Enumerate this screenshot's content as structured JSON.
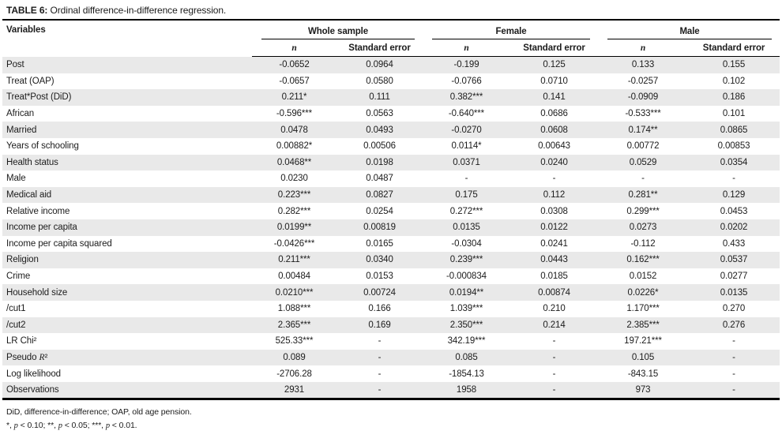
{
  "title": {
    "label": "TABLE 6:",
    "text": " Ordinal difference-in-difference regression."
  },
  "table": {
    "variables_header": "Variables",
    "groups": [
      {
        "label": "Whole sample"
      },
      {
        "label": "Female"
      },
      {
        "label": "Male"
      }
    ],
    "col_headers": {
      "coef": "n",
      "se": "Standard error"
    },
    "rows": [
      {
        "variable": "Post",
        "cells": [
          "-0.0652",
          "0.0964",
          "-0.199",
          "0.125",
          "0.133",
          "0.155"
        ]
      },
      {
        "variable": "Treat (OAP)",
        "cells": [
          "-0.0657",
          "0.0580",
          "-0.0766",
          "0.0710",
          "-0.0257",
          "0.102"
        ]
      },
      {
        "variable": "Treat*Post (DiD)",
        "cells": [
          "0.211*",
          "0.111",
          "0.382***",
          "0.141",
          "-0.0909",
          "0.186"
        ]
      },
      {
        "variable": "African",
        "cells": [
          "-0.596***",
          "0.0563",
          "-0.640***",
          "0.0686",
          "-0.533***",
          "0.101"
        ]
      },
      {
        "variable": "Married",
        "cells": [
          "0.0478",
          "0.0493",
          "-0.0270",
          "0.0608",
          "0.174**",
          "0.0865"
        ]
      },
      {
        "variable": "Years of schooling",
        "cells": [
          "0.00882*",
          "0.00506",
          "0.0114*",
          "0.00643",
          "0.00772",
          "0.00853"
        ]
      },
      {
        "variable": "Health status",
        "cells": [
          "0.0468**",
          "0.0198",
          "0.0371",
          "0.0240",
          "0.0529",
          "0.0354"
        ]
      },
      {
        "variable": "Male",
        "cells": [
          "0.0230",
          "0.0487",
          "-",
          "-",
          "-",
          "-"
        ]
      },
      {
        "variable": "Medical aid",
        "cells": [
          "0.223***",
          "0.0827",
          "0.175",
          "0.112",
          "0.281**",
          "0.129"
        ]
      },
      {
        "variable": "Relative income",
        "cells": [
          "0.282***",
          "0.0254",
          "0.272***",
          "0.0308",
          "0.299***",
          "0.0453"
        ]
      },
      {
        "variable": "Income per capita",
        "cells": [
          "0.0199**",
          "0.00819",
          "0.0135",
          "0.0122",
          "0.0273",
          "0.0202"
        ]
      },
      {
        "variable": "Income per capita squared",
        "cells": [
          "-0.0426***",
          "0.0165",
          "-0.0304",
          "0.0241",
          "-0.112",
          "0.433"
        ]
      },
      {
        "variable": "Religion",
        "cells": [
          "0.211***",
          "0.0340",
          "0.239***",
          "0.0443",
          "0.162***",
          "0.0537"
        ]
      },
      {
        "variable": "Crime",
        "cells": [
          "0.00484",
          "0.0153",
          "-0.000834",
          "0.0185",
          "0.0152",
          "0.0277"
        ]
      },
      {
        "variable": "Household size",
        "cells": [
          "0.0210***",
          "0.00724",
          "0.0194**",
          "0.00874",
          "0.0226*",
          "0.0135"
        ]
      },
      {
        "variable": "/cut1",
        "cells": [
          "1.088***",
          "0.166",
          "1.039***",
          "0.210",
          "1.170***",
          "0.270"
        ]
      },
      {
        "variable": "/cut2",
        "cells": [
          "2.365***",
          "0.169",
          "2.350***",
          "0.214",
          "2.385***",
          "0.276"
        ]
      },
      {
        "variable": "LR Chi²",
        "cells": [
          "525.33***",
          "-",
          "342.19***",
          "-",
          "197.21***",
          "-"
        ]
      },
      {
        "variable": "Pseudo R²",
        "cells": [
          "0.089",
          "-",
          "0.085",
          "-",
          "0.105",
          "-"
        ]
      },
      {
        "variable": "Log likelihood",
        "cells": [
          "-2706.28",
          "-",
          "-1854.13",
          "-",
          "-843.15",
          "-"
        ]
      },
      {
        "variable": "Observations",
        "cells": [
          "2931",
          "-",
          "1958",
          "-",
          "973",
          "-"
        ]
      }
    ]
  },
  "footnotes": [
    "DiD, difference-in-difference; OAP, old age pension.",
    "*, p < 0.10; **, p < 0.05; ***, p < 0.01."
  ]
}
